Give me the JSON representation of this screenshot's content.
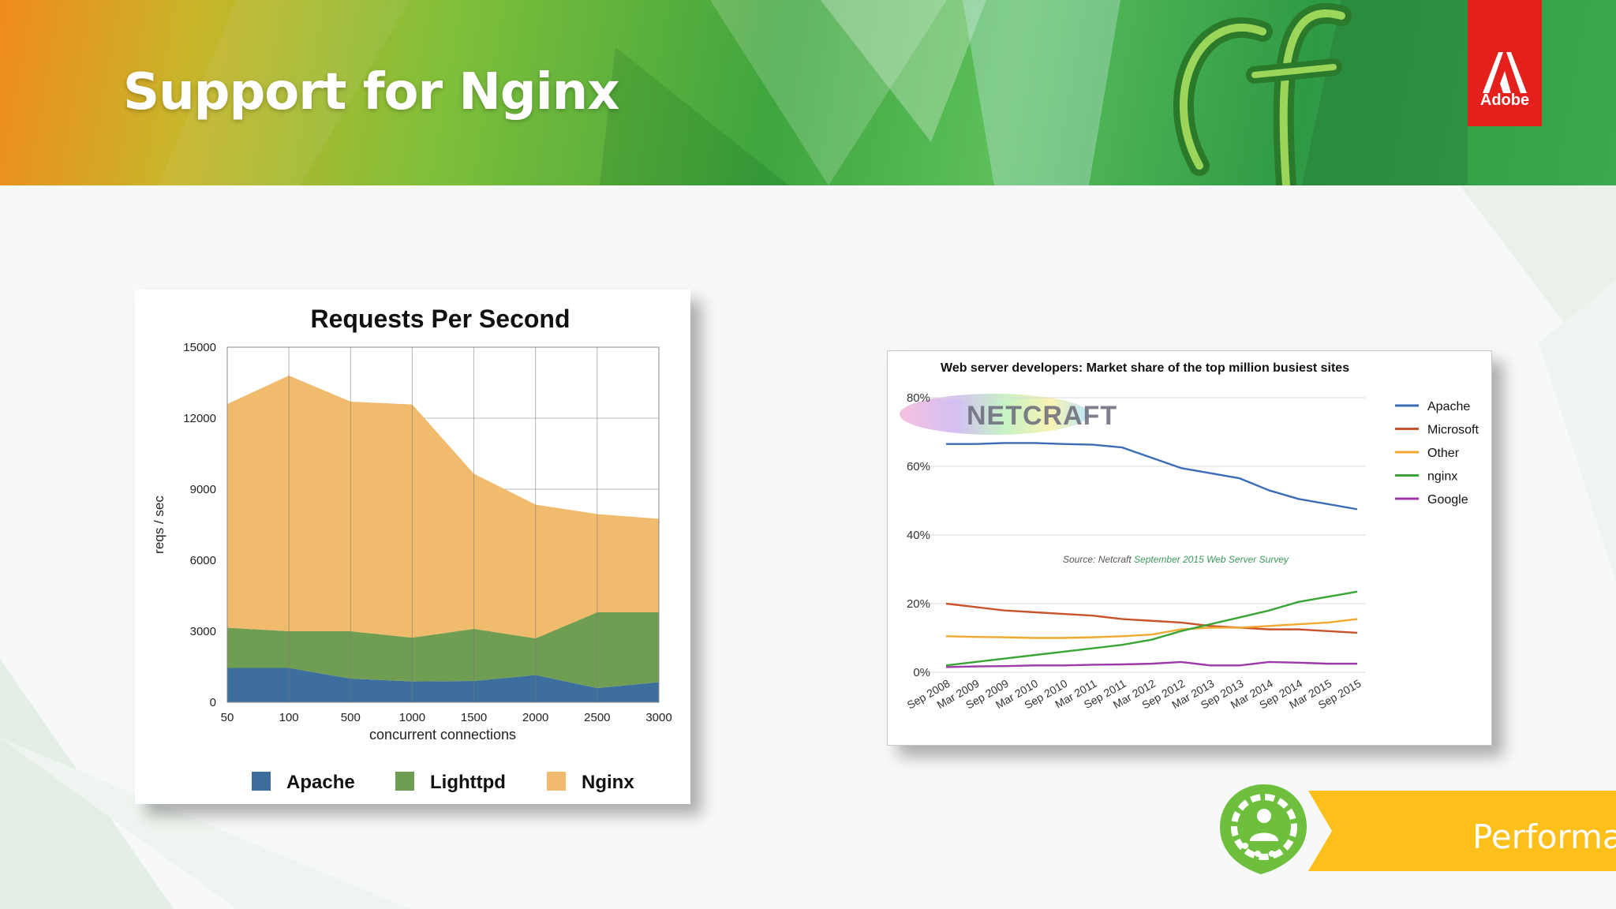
{
  "slide": {
    "title": "Support for Nginx"
  },
  "brand": {
    "adobe_label": "Adobe",
    "tag_label": "Performance"
  },
  "colors": {
    "apache": "#3d6e9e",
    "lighttpd": "#6f9e53",
    "nginx": "#f0bb6c",
    "brand_red": "#e3201b",
    "tag_yellow": "#fdbf1a"
  },
  "chart_data": [
    {
      "type": "area",
      "stacked": true,
      "title": "Requests Per Second",
      "xlabel": "concurrent connections",
      "ylabel": "reqs / sec",
      "categories": [
        "50",
        "100",
        "500",
        "1000",
        "1500",
        "2000",
        "2500",
        "3000"
      ],
      "ylim": [
        0,
        15000
      ],
      "yticks": [
        "0",
        "3000",
        "6000",
        "9000",
        "12000",
        "15000"
      ],
      "grid": true,
      "legend_position": "bottom",
      "series": [
        {
          "name": "Apache",
          "color": "#3d6e9e",
          "values": [
            1450,
            1450,
            1000,
            880,
            900,
            1150,
            600,
            850
          ]
        },
        {
          "name": "Lighttpd",
          "color": "#6f9e53",
          "values": [
            1700,
            1550,
            2000,
            1850,
            2200,
            1550,
            3200,
            2950
          ]
        },
        {
          "name": "Nginx",
          "color": "#f0bb6c",
          "values": [
            9450,
            10800,
            9700,
            9850,
            6550,
            5650,
            4150,
            3950
          ]
        }
      ]
    },
    {
      "type": "line",
      "title": "Web server developers: Market share of the top million busiest sites",
      "annotation": "Source: Netcraft September 2015 Web Server Survey",
      "annotation_source": "Source: Netcraft",
      "annotation_link": "September 2015 Web Server Survey",
      "watermark": "NETCRAFT",
      "x": [
        "Sep 2008",
        "Mar 2009",
        "Sep 2009",
        "Mar 2010",
        "Sep 2010",
        "Mar 2011",
        "Sep 2011",
        "Mar 2012",
        "Sep 2012",
        "Mar 2013",
        "Sep 2013",
        "Mar 2014",
        "Sep 2014",
        "Mar 2015",
        "Sep 2015"
      ],
      "ylim": [
        0,
        80
      ],
      "yticks": [
        "0%",
        "20%",
        "40%",
        "60%",
        "80%"
      ],
      "grid": true,
      "legend_position": "right",
      "series": [
        {
          "name": "Apache",
          "color": "#3a6db5",
          "values": [
            66.5,
            66.5,
            66.8,
            66.8,
            66.5,
            66.3,
            65.5,
            62.5,
            59.5,
            58.0,
            56.5,
            53.0,
            50.5,
            49.0,
            47.5
          ]
        },
        {
          "name": "Microsoft",
          "color": "#c9532a",
          "values": [
            20.0,
            19.0,
            18.0,
            17.5,
            17.0,
            16.5,
            15.5,
            15.0,
            14.5,
            13.5,
            13.0,
            12.5,
            12.5,
            12.0,
            11.5
          ]
        },
        {
          "name": "Other",
          "color": "#f0a830",
          "values": [
            10.5,
            10.3,
            10.2,
            10.0,
            10.0,
            10.2,
            10.5,
            11.0,
            12.5,
            13.0,
            13.0,
            13.5,
            14.0,
            14.5,
            15.5
          ]
        },
        {
          "name": "nginx",
          "color": "#3aa535",
          "values": [
            2.0,
            3.0,
            4.0,
            5.0,
            6.0,
            7.0,
            8.0,
            9.5,
            12.0,
            14.0,
            16.0,
            18.0,
            20.5,
            22.0,
            23.5
          ]
        },
        {
          "name": "Google",
          "color": "#9b3aa8",
          "values": [
            1.5,
            1.7,
            1.8,
            2.0,
            2.0,
            2.2,
            2.3,
            2.5,
            3.0,
            2.0,
            2.0,
            3.0,
            2.8,
            2.5,
            2.5
          ]
        }
      ]
    }
  ]
}
